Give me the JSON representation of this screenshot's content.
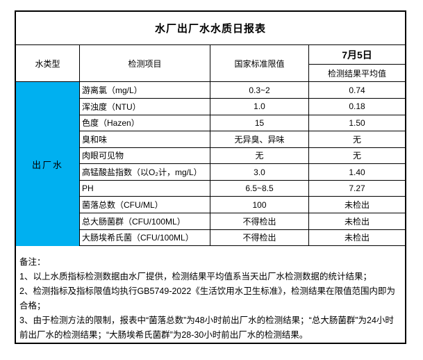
{
  "report": {
    "title": "水厂出厂水水质日报表",
    "columns": {
      "water_type": "水类型",
      "test_item": "检测项目",
      "national_limit": "国家标准限值",
      "date": "7月5日",
      "result_avg": "检测结果平均值"
    },
    "water_type_value": "出厂水",
    "rows": [
      {
        "item": "游离氯（mg/L）",
        "limit": "0.3~2",
        "result": "0.74"
      },
      {
        "item": "浑浊度（NTU）",
        "limit": "1.0",
        "result": "0.18"
      },
      {
        "item": "色度（Hazen）",
        "limit": "15",
        "result": "1.50"
      },
      {
        "item": "臭和味",
        "limit": "无异臭、异味",
        "result": "无"
      },
      {
        "item": "肉眼可见物",
        "limit": "无",
        "result": "无"
      },
      {
        "item": "高锰酸盐指数（以O₂计，mg/L）",
        "limit": "3.0",
        "result": "1.40"
      },
      {
        "item": "PH",
        "limit": "6.5~8.5",
        "result": "7.27"
      },
      {
        "item": "菌落总数（CFU/ML）",
        "limit": "100",
        "result": "未检出"
      },
      {
        "item": "总大肠菌群（CFU/100ML）",
        "limit": "不得检出",
        "result": "未检出"
      },
      {
        "item": "大肠埃希氏菌（CFU/100ML）",
        "limit": "不得检出",
        "result": "未检出"
      }
    ],
    "notes": {
      "label": "备注：",
      "items": [
        "1、以上水质指标检测数据由水厂提供，检测结果平均值系当天出厂水检测数据的统计结果；",
        "2、检测指标及指标限值均执行GB5749-2022《生活饮用水卫生标准》，检测结果在限值范围内即为合格；",
        "3、由于检测方法的限制，报表中“菌落总数”为48小时前出厂水的检测结果；“总大肠菌群”为24小时前出厂水的检测结果；“大肠埃希氏菌群”为28-30小时前出厂水的检测结果。"
      ]
    },
    "colors": {
      "highlight": "#00B0F0",
      "border": "#000000"
    }
  }
}
